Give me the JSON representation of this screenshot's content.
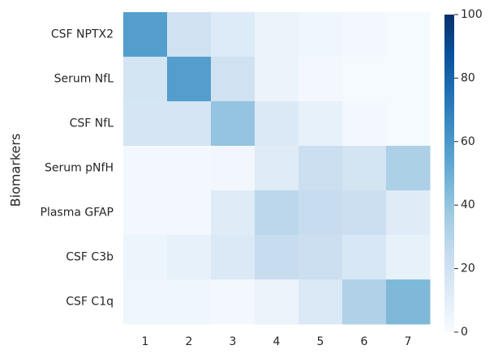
{
  "chart_data": {
    "type": "heatmap",
    "y_label": "Biomarkers",
    "x_categories": [
      "1",
      "2",
      "3",
      "4",
      "5",
      "6",
      "7"
    ],
    "y_categories": [
      "CSF NPTX2",
      "Serum NfL",
      "CSF NfL",
      "Serum pNfH",
      "Plasma GFAP",
      "CSF C3b",
      "CSF C1q"
    ],
    "values": [
      [
        57,
        20,
        13,
        6,
        4,
        2,
        1
      ],
      [
        18,
        57,
        20,
        6,
        2,
        1,
        1
      ],
      [
        17,
        17,
        40,
        14,
        8,
        2,
        1
      ],
      [
        2,
        2,
        3,
        12,
        22,
        18,
        33
      ],
      [
        2,
        2,
        12,
        28,
        24,
        22,
        12
      ],
      [
        5,
        8,
        14,
        24,
        22,
        16,
        8
      ],
      [
        4,
        4,
        2,
        6,
        14,
        32,
        45
      ]
    ],
    "colorscale": [
      "#f7fbff",
      "#deebf7",
      "#c6dbef",
      "#9ecae1",
      "#6baed6",
      "#4292c6",
      "#2171b5",
      "#08519c",
      "#08306b"
    ],
    "clim": [
      0,
      100
    ],
    "cticks": [
      0,
      20,
      40,
      60,
      80,
      100
    ]
  }
}
